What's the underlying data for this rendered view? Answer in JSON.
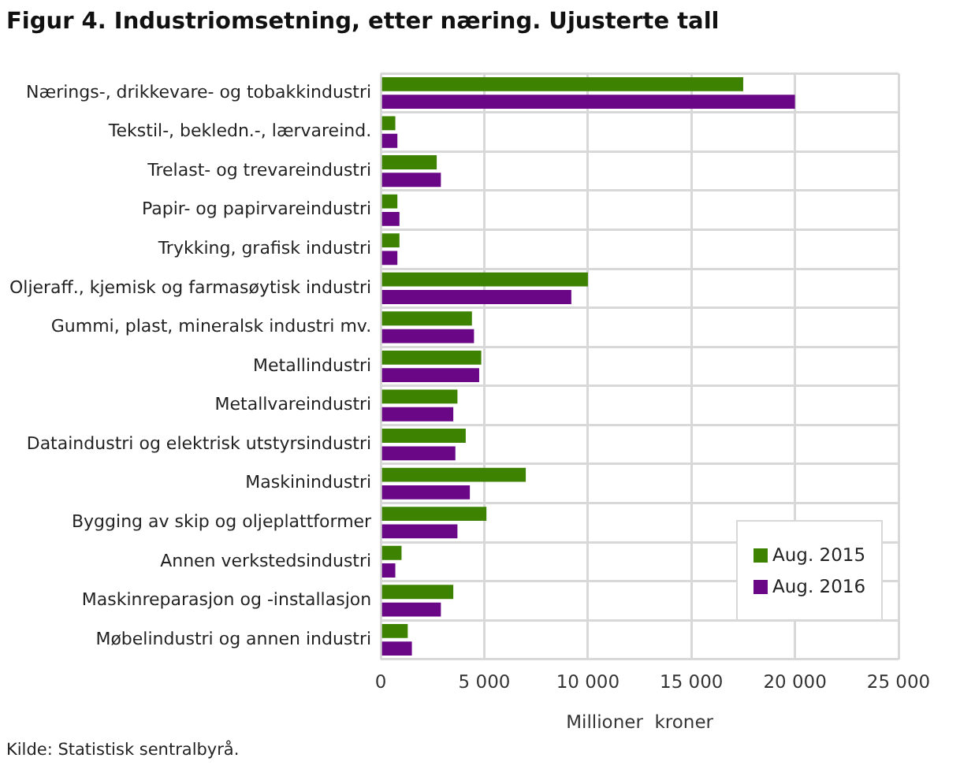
{
  "chart_data": {
    "type": "bar",
    "orientation": "horizontal",
    "title": "Figur 4. Industriomsetning, etter næring. Ujusterte tall",
    "categories": [
      "Nærings-, drikkevare- og tobakkindustri",
      "Tekstil-, bekledn.-, lærvareind.",
      "Trelast- og trevareindustri",
      "Papir- og papirvareindustri",
      "Trykking, grafisk industri",
      "Oljeraff., kjemisk og farmasøytisk industri",
      "Gummi, plast, mineralsk industri mv.",
      "Metallindustri",
      "Metallvareindustri",
      "Dataindustri og elektrisk utstyrsindustri",
      "Maskinindustri",
      "Bygging av skip og oljeplattformer",
      "Annen verkstedsindustri",
      "Maskinreparasjon og -installasjon",
      "Møbelindustri og annen industri"
    ],
    "series": [
      {
        "name": "Aug. 2015",
        "color": "#3d8200",
        "values": [
          17500,
          700,
          2700,
          800,
          900,
          10000,
          4400,
          4850,
          3700,
          4100,
          7000,
          5100,
          1000,
          3500,
          1300
        ]
      },
      {
        "name": "Aug. 2016",
        "color": "#6a0787",
        "values": [
          20000,
          800,
          2900,
          900,
          800,
          9200,
          4500,
          4750,
          3500,
          3600,
          4300,
          3700,
          700,
          2900,
          1500
        ]
      }
    ],
    "xlabel": "Millioner  kroner",
    "xlim": [
      0,
      25000
    ],
    "xticks": [
      {
        "value": 0,
        "label": "0"
      },
      {
        "value": 5000,
        "label": "5 000"
      },
      {
        "value": 10000,
        "label": "10 000"
      },
      {
        "value": 15000,
        "label": "15 000"
      },
      {
        "value": 20000,
        "label": "20 000"
      },
      {
        "value": 25000,
        "label": "25 000"
      }
    ],
    "grid": true,
    "legend": "bottom right",
    "annotations": [
      "Kilde: Statistisk sentralbyrå."
    ]
  }
}
